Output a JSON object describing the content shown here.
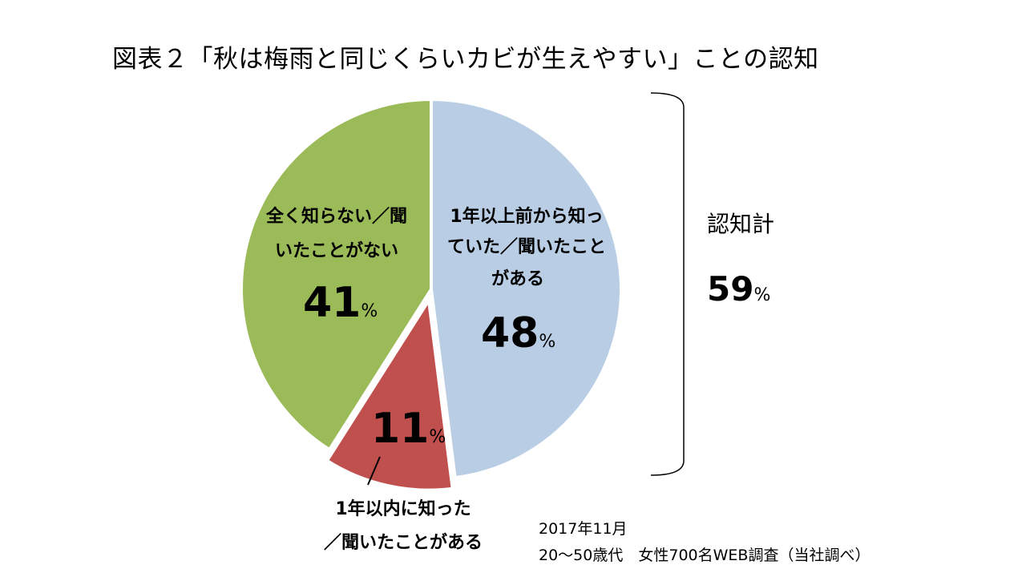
{
  "title": "図表２「秋は梅雨と同じくらいカビが生えやすい」ことの認知",
  "chart_data": {
    "type": "pie",
    "slices": [
      {
        "label_lines": [
          "1年以上前から知っ",
          "ていた／聞いたこと",
          "がある"
        ],
        "value": 48,
        "color": "#b9cde5"
      },
      {
        "label_lines": [
          "1年以内に知った",
          "／聞いたことがある"
        ],
        "value": 11,
        "color": "#c0504d"
      },
      {
        "label_lines": [
          "全く知らない／聞",
          "いたことがない"
        ],
        "value": 41,
        "color": "#9bbb59"
      }
    ],
    "unit": "%",
    "start_angle_deg": 0,
    "direction": "clockwise"
  },
  "total": {
    "label": "認知計",
    "value": "59",
    "unit": "%"
  },
  "notes": [
    "2017年11月",
    "20～50歳代　女性700名WEB調査（当社調べ）"
  ]
}
